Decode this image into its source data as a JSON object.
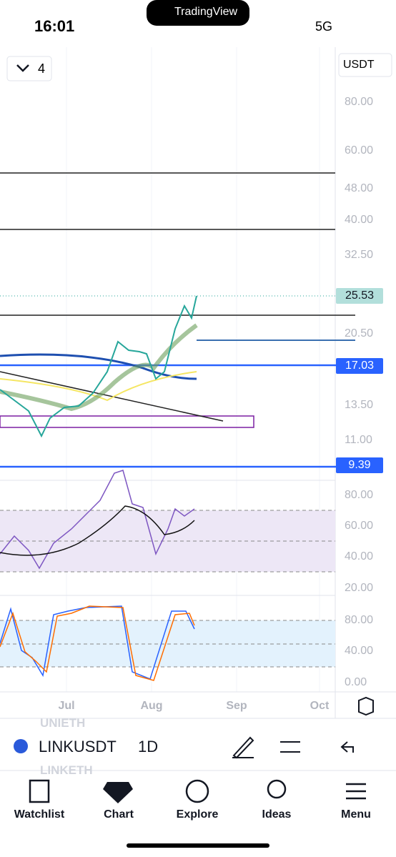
{
  "status_bar": {
    "time": "16:01",
    "network": "5G"
  },
  "top_badge": "TradingView",
  "toolbar": {
    "interval_count": "4",
    "currency": "USDT"
  },
  "price_axis": [
    "80.00",
    "60.00",
    "48.00",
    "40.00",
    "32.50",
    "20.50",
    "13.50",
    "11.00"
  ],
  "price_tags": [
    "25.53",
    "17.03",
    "9.39"
  ],
  "rsi_axis": [
    "80.00",
    "60.00",
    "40.00",
    "20.00"
  ],
  "stoch_axis": [
    "80.00",
    "40.00",
    "0.00"
  ],
  "time_axis": [
    "Jul",
    "Aug",
    "Sep",
    "Oct"
  ],
  "symbol_bar": {
    "ghost_above": "UNIETH",
    "symbol": "LINKUSDT",
    "interval": "1D",
    "ghost_below": "LINKETH"
  },
  "nav": [
    "Watchlist",
    "Chart",
    "Explore",
    "Ideas",
    "Menu"
  ]
}
